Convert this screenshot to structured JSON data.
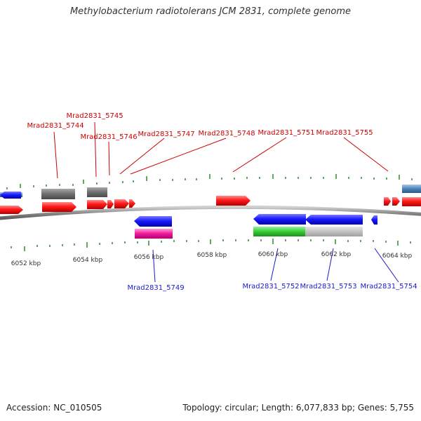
{
  "title": "Methylobacterium radiotolerans JCM 2831, complete genome",
  "footer": {
    "accession": "Accession: NC_010505",
    "summary": "Topology: circular; Length: 6,077,833 bp; Genes: 5,755"
  },
  "colors": {
    "forward_label": "#cc0000",
    "reverse_label": "#1a1acc",
    "tick": "#2e8b2e",
    "backbone": "#8a8a8a"
  },
  "kbp_labels": [
    "6052 kbp",
    "6054 kbp",
    "6056 kbp",
    "6058 kbp",
    "6060 kbp",
    "6062 kbp",
    "6064 kbp"
  ],
  "gene_labels": [
    {
      "text": "Mrad2831_5744",
      "strand": "forward"
    },
    {
      "text": "Mrad2831_5745",
      "strand": "forward"
    },
    {
      "text": "Mrad2831_5746",
      "strand": "forward"
    },
    {
      "text": "Mrad2831_5747",
      "strand": "forward"
    },
    {
      "text": "Mrad2831_5748",
      "strand": "forward"
    },
    {
      "text": "Mrad2831_5751",
      "strand": "forward"
    },
    {
      "text": "Mrad2831_5755",
      "strand": "forward"
    },
    {
      "text": "Mrad2831_5749",
      "strand": "reverse"
    },
    {
      "text": "Mrad2831_5752",
      "strand": "reverse"
    },
    {
      "text": "Mrad2831_5753",
      "strand": "reverse"
    },
    {
      "text": "Mrad2831_5754",
      "strand": "reverse"
    }
  ]
}
